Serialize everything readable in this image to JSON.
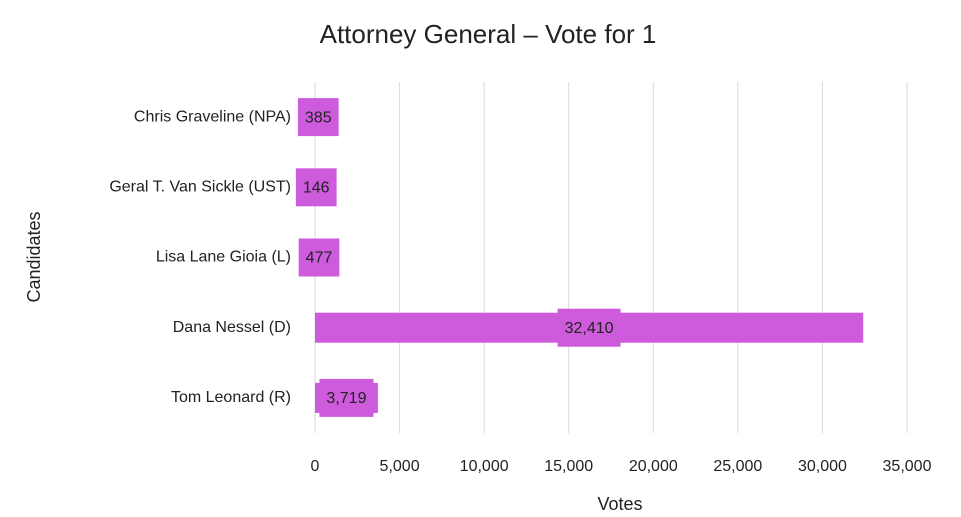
{
  "chart_data": {
    "type": "barh",
    "title": "Attorney General – Vote for 1",
    "xlabel": "Votes",
    "ylabel": "Candidates",
    "categories": [
      "Chris Graveline (NPA)",
      "Geral T. Van Sickle (UST)",
      "Lisa Lane Gioia (L)",
      "Dana Nessel (D)",
      "Tom Leonard (R)"
    ],
    "values": [
      385,
      146,
      477,
      32410,
      3719
    ],
    "value_labels": [
      "385",
      "146",
      "477",
      "32,410",
      "3,719"
    ],
    "color": "#cd5bdc",
    "xlim": [
      0,
      35000
    ],
    "xticks": [
      0,
      {
        "value": 5000,
        "label": "5,000"
      },
      {
        "value": 10000,
        "label": "10,000"
      },
      {
        "value": 15000,
        "label": "15,000"
      },
      {
        "value": 20000,
        "label": "20,000"
      },
      {
        "value": 25000,
        "label": "25,000"
      },
      {
        "value": 30000,
        "label": "30,000"
      },
      {
        "value": 35000,
        "label": "35,000"
      }
    ],
    "grid": true
  }
}
